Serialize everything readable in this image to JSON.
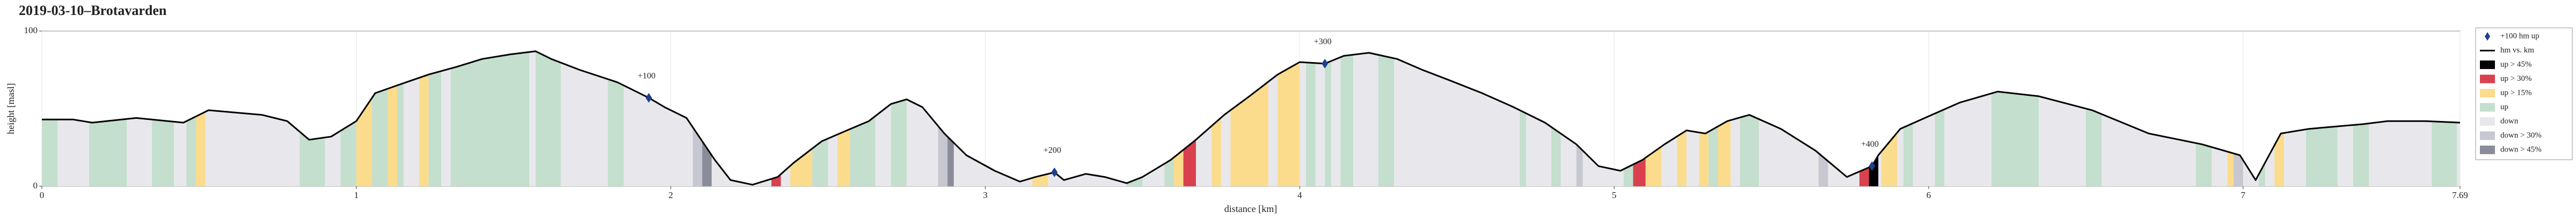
{
  "chart_data": {
    "type": "area",
    "title": "2019-03-10–Brotavarden",
    "xlabel": "distance [km]",
    "ylabel": "height [masl]",
    "x": [
      0,
      0.1,
      0.16,
      0.3,
      0.45,
      0.53,
      0.7,
      0.78,
      0.85,
      0.92,
      1.0,
      1.06,
      1.13,
      1.23,
      1.32,
      1.4,
      1.49,
      1.57,
      1.62,
      1.71,
      1.83,
      1.93,
      1.98,
      2.05,
      2.09,
      2.14,
      2.19,
      2.26,
      2.34,
      2.39,
      2.48,
      2.56,
      2.63,
      2.7,
      2.75,
      2.8,
      2.87,
      2.94,
      3.03,
      3.11,
      3.16,
      3.22,
      3.25,
      3.32,
      3.38,
      3.45,
      3.5,
      3.59,
      3.67,
      3.76,
      3.84,
      3.93,
      4.0,
      4.08,
      4.14,
      4.22,
      4.31,
      4.39,
      4.48,
      4.58,
      4.68,
      4.78,
      4.88,
      4.95,
      5.02,
      5.09,
      5.16,
      5.23,
      5.29,
      5.36,
      5.43,
      5.53,
      5.64,
      5.74,
      5.82,
      5.84,
      5.91,
      6.01,
      6.1,
      6.22,
      6.35,
      6.52,
      6.7,
      6.87,
      6.99,
      7.04,
      7.12,
      7.21,
      7.38,
      7.46,
      7.58,
      7.69
    ],
    "values": [
      43,
      43,
      41,
      44,
      41,
      49,
      46,
      42,
      30,
      32,
      42,
      60,
      65,
      72,
      77,
      82,
      85,
      87,
      82,
      75,
      67,
      57,
      51,
      44,
      32,
      17,
      4,
      1,
      6,
      15,
      29,
      36,
      42,
      53,
      56,
      51,
      34,
      20,
      10,
      3,
      6,
      9,
      4,
      8,
      6,
      2,
      6,
      17,
      30,
      46,
      58,
      72,
      80,
      79,
      84,
      86,
      82,
      75,
      68,
      60,
      51,
      41,
      27,
      13,
      10,
      17,
      27,
      36,
      34,
      42,
      46,
      37,
      23,
      6,
      13,
      20,
      37,
      46,
      54,
      61,
      58,
      49,
      34,
      27,
      20,
      4,
      34,
      37,
      40,
      42,
      42,
      41
    ],
    "color": "#000000",
    "xlim": [
      0,
      7.69
    ],
    "ylim": [
      0,
      100
    ],
    "xticks": [
      0,
      1,
      2,
      3,
      4,
      5,
      6,
      7,
      7.69
    ],
    "yticks": [
      0,
      100
    ],
    "grid": true,
    "legend_position": "right",
    "markers": [
      {
        "x": 1.93,
        "y": 57,
        "label": "+100"
      },
      {
        "x": 3.22,
        "y": 9,
        "label": "+200"
      },
      {
        "x": 4.08,
        "y": 79,
        "label": "+300"
      },
      {
        "x": 5.82,
        "y": 13,
        "label": "+400"
      }
    ],
    "legend": [
      {
        "name": "+100 hm up",
        "color": "#1f3f8f",
        "symbol": "marker"
      },
      {
        "name": "hm vs. km",
        "color": "#000000",
        "symbol": "line"
      },
      {
        "name": "up > 45%",
        "color": "#000000",
        "symbol": "patch",
        "ranges": [
          [
            5.81,
            5.84
          ]
        ]
      },
      {
        "name": "up > 30%",
        "color": "#d9414f",
        "symbol": "patch",
        "ranges": [
          [
            2.32,
            2.35
          ],
          [
            3.63,
            3.67
          ],
          [
            5.06,
            5.1
          ],
          [
            5.78,
            5.81
          ]
        ]
      },
      {
        "name": "up > 15%",
        "color": "#fbdc8c",
        "symbol": "patch",
        "ranges": [
          [
            0.49,
            0.52
          ],
          [
            1.0,
            1.05
          ],
          [
            1.1,
            1.13
          ],
          [
            1.2,
            1.23
          ],
          [
            2.38,
            2.45
          ],
          [
            2.53,
            2.57
          ],
          [
            3.15,
            3.2
          ],
          [
            3.6,
            3.63
          ],
          [
            3.72,
            3.75
          ],
          [
            3.78,
            3.9
          ],
          [
            3.93,
            4.0
          ],
          [
            5.1,
            5.15
          ],
          [
            5.2,
            5.23
          ],
          [
            5.27,
            5.3
          ],
          [
            5.33,
            5.37
          ],
          [
            5.85,
            5.9
          ],
          [
            6.95,
            7.0
          ],
          [
            7.1,
            7.13
          ]
        ]
      },
      {
        "name": "up",
        "color": "#c4dfcd",
        "symbol": "patch",
        "ranges": [
          [
            0.0,
            0.05
          ],
          [
            0.15,
            0.27
          ],
          [
            0.35,
            0.42
          ],
          [
            0.46,
            0.49
          ],
          [
            0.82,
            0.9
          ],
          [
            0.95,
            1.0
          ],
          [
            1.05,
            1.1
          ],
          [
            1.13,
            1.15
          ],
          [
            1.23,
            1.27
          ],
          [
            1.3,
            1.55
          ],
          [
            1.57,
            1.65
          ],
          [
            1.8,
            1.85
          ],
          [
            2.45,
            2.5
          ],
          [
            2.57,
            2.65
          ],
          [
            2.7,
            2.75
          ],
          [
            3.45,
            3.5
          ],
          [
            3.57,
            3.6
          ],
          [
            4.02,
            4.05
          ],
          [
            4.08,
            4.1
          ],
          [
            4.13,
            4.17
          ],
          [
            4.25,
            4.3
          ],
          [
            4.7,
            4.72
          ],
          [
            4.8,
            4.83
          ],
          [
            5.03,
            5.06
          ],
          [
            5.3,
            5.33
          ],
          [
            5.4,
            5.46
          ],
          [
            5.92,
            5.95
          ],
          [
            6.02,
            6.05
          ],
          [
            6.2,
            6.35
          ],
          [
            6.5,
            6.55
          ],
          [
            6.85,
            6.9
          ],
          [
            7.05,
            7.07
          ],
          [
            7.2,
            7.3
          ],
          [
            7.35,
            7.4
          ],
          [
            7.6,
            7.68
          ]
        ]
      },
      {
        "name": "down",
        "color": "#e8e8ec",
        "symbol": "patch"
      },
      {
        "name": "down > 30%",
        "color": "#c6c7d0",
        "symbol": "patch",
        "ranges": [
          [
            2.07,
            2.1
          ],
          [
            2.85,
            2.88
          ],
          [
            4.88,
            4.9
          ],
          [
            5.65,
            5.68
          ],
          [
            6.97,
            7.0
          ]
        ]
      },
      {
        "name": "down > 45%",
        "color": "#8a8d99",
        "symbol": "patch",
        "ranges": [
          [
            2.1,
            2.13
          ],
          [
            2.88,
            2.9
          ]
        ]
      }
    ]
  }
}
